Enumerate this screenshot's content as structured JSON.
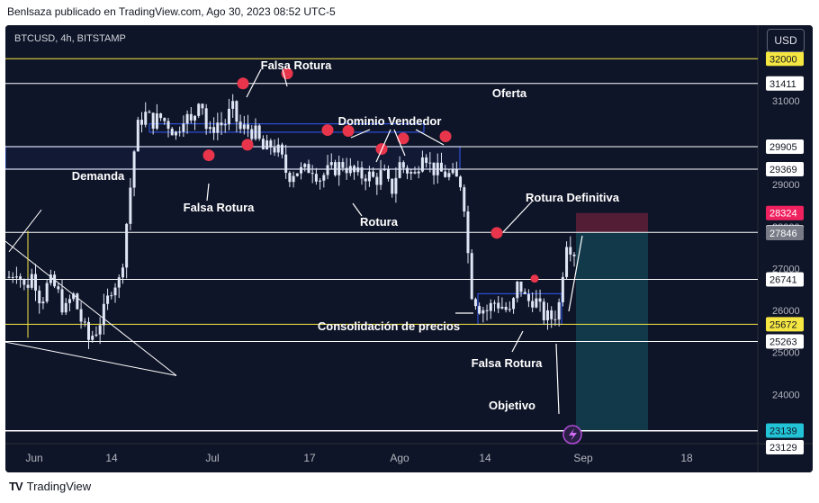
{
  "header": {
    "text": "Benlsaza publicado en TradingView.com, Ago 30, 2023 08:52 UTC-5"
  },
  "footer": {
    "logo": "TV",
    "brand": "TradingView"
  },
  "symbol_line": "BTCUSD, 4h, BITSTAMP",
  "currency_button": "USD",
  "colors": {
    "background": "#0f1528",
    "candle": "#dfe6f5",
    "level_yellow": "#f5e642",
    "level_white": "#ffffff",
    "zone_blue": "#2d4fd8",
    "marker_red": "#e8354b",
    "target_zone": "#13404f",
    "stop_zone": "#5b1e36",
    "price_tag_cyan": "#22c3d6",
    "price_tag_pink": "#f0215f",
    "price_tag_gray": "#787b86"
  },
  "chart_data": {
    "type": "candlestick",
    "x_ticks": [
      "Jun",
      "14",
      "Jul",
      "17",
      "Ago",
      "14",
      "Sep",
      "18"
    ],
    "y_ticks": [
      24000,
      25000,
      26000,
      27000,
      28000,
      29000,
      30000,
      31000
    ],
    "ylim": [
      22850,
      32800
    ],
    "close_path": [
      26800,
      27000,
      26500,
      26900,
      26200,
      26700,
      26500,
      25950,
      26400,
      25800,
      25300,
      25550,
      26000,
      26650,
      26700,
      28500,
      30300,
      30700,
      30500,
      30600,
      30450,
      30200,
      30700,
      30400,
      31250,
      30100,
      30500,
      30400,
      30850,
      30300,
      30350,
      30200,
      29800,
      29950,
      29750,
      29200,
      29350,
      29300,
      29450,
      29150,
      29300,
      29400,
      29500,
      29300,
      29200,
      29250,
      29100,
      29300,
      28800,
      29500,
      29350,
      29200,
      29900,
      29400,
      29300,
      29250,
      29150,
      29000,
      26500,
      26100,
      26000,
      26200,
      26100,
      25900,
      26700,
      26200,
      26300,
      25900,
      25800,
      26000,
      27700,
      27400
    ],
    "levels": [
      {
        "price": 32000,
        "label": "32000",
        "color": "yellow"
      },
      {
        "price": 31411,
        "label": "31411",
        "color": "white"
      },
      {
        "price": 29905,
        "label": "29905",
        "color": "white"
      },
      {
        "price": 29369,
        "label": "29369",
        "color": "white"
      },
      {
        "price": 27863,
        "label": "27863",
        "color": "white"
      },
      {
        "price": 26741,
        "label": "26741",
        "color": "white"
      },
      {
        "price": 25672,
        "label": "25672",
        "color": "yellow"
      },
      {
        "price": 25263,
        "label": "25263",
        "color": "white"
      },
      {
        "price": 23139,
        "label": "23139",
        "color": "cyan"
      },
      {
        "price": 23129,
        "label": "23129",
        "color": "white"
      }
    ],
    "price_tags": [
      {
        "price": 28324,
        "label": "28324",
        "color": "pink"
      },
      {
        "price": 27846,
        "label": "27846",
        "color": "gray"
      }
    ],
    "annotations": [
      "Falsa Rotura",
      "Oferta",
      "Dominio Vendedor",
      "Demanda",
      "Falsa Rotura",
      "Rotura",
      "Rotura Definitiva",
      "Consolidación de precios",
      "Falsa Rotura",
      "Objetivo"
    ]
  }
}
